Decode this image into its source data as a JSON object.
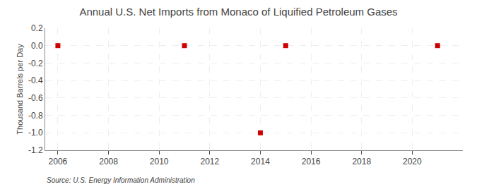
{
  "chart_data": {
    "type": "scatter",
    "title": "Annual U.S. Net Imports from Monaco of Liquified Petroleum Gases",
    "ylabel": "Thousand Barrels per Day",
    "annotations": [
      "Source: U.S. Energy Information Administration"
    ],
    "x": [
      2006,
      2011,
      2014,
      2015,
      2021
    ],
    "values": [
      0.0,
      0.0,
      -1.0,
      0.0,
      0.0
    ],
    "color": "#cc0000",
    "marker": "square",
    "xlim": [
      2005.5,
      2022.0
    ],
    "ylim": [
      -1.2,
      0.2
    ],
    "xticks": [
      2006,
      2008,
      2010,
      2012,
      2014,
      2016,
      2018,
      2020
    ],
    "yticks": [
      0.2,
      {
        "value": 0.0,
        "label": "0.0"
      },
      -0.2,
      -0.4,
      -0.6,
      -0.8,
      {
        "value": -1.0,
        "label": "-1.0"
      },
      -1.2
    ],
    "grid": true
  }
}
